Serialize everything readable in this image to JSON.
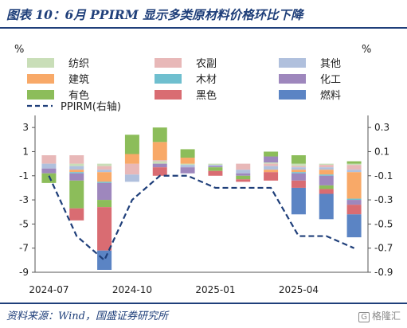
{
  "header": {
    "title": "图表 10：6月 PPIRM 显示多类原材料价格环比下降"
  },
  "footer": {
    "source": "资料来源：Wind，国盛证券研究所",
    "watermark": "格隆汇"
  },
  "chart_data": {
    "type": "bar",
    "stacked": true,
    "left_axis": {
      "unit": "%",
      "range": [
        -9,
        4
      ],
      "ticks": [
        3,
        1,
        -1,
        -3,
        -5,
        -7,
        -9
      ]
    },
    "right_axis": {
      "unit": "%",
      "range": [
        -0.9,
        0.4
      ],
      "ticks": [
        "0.3",
        "0.1",
        "-0.1",
        "-0.3",
        "-0.5",
        "-0.7",
        "-0.9"
      ]
    },
    "x_tick_labels": [
      {
        "label": "2024-07",
        "index": 0
      },
      {
        "label": "2024-10",
        "index": 3
      },
      {
        "label": "2025-01",
        "index": 6
      },
      {
        "label": "2025-04",
        "index": 9
      }
    ],
    "categories": [
      "2024-07",
      "2024-08",
      "2024-09",
      "2024-10",
      "2024-11",
      "2024-12",
      "2025-01",
      "2025-02",
      "2025-03",
      "2025-04",
      "2025-05",
      "2025-06"
    ],
    "legend_position": "top",
    "series": [
      {
        "name": "纺织",
        "color": "#c9deb8",
        "values": [
          0.0,
          -0.2,
          -0.2,
          0.0,
          0.2,
          -0.1,
          -0.1,
          0.0,
          0.1,
          -0.2,
          -0.1,
          -0.1
        ]
      },
      {
        "name": "农副",
        "color": "#e8b8b8",
        "values": [
          0.7,
          0.7,
          -0.3,
          -0.9,
          0.1,
          0.0,
          0.0,
          -0.5,
          -0.2,
          -0.1,
          -0.2,
          -0.4
        ]
      },
      {
        "name": "其他",
        "color": "#b0c0dd",
        "values": [
          -0.4,
          -0.3,
          -0.2,
          -0.6,
          0.0,
          -0.2,
          -0.1,
          -0.3,
          -0.3,
          -0.2,
          -0.2,
          -0.2
        ]
      },
      {
        "name": "建筑",
        "color": "#f8a968",
        "values": [
          0.0,
          -0.2,
          -0.8,
          0.8,
          1.5,
          0.5,
          0.0,
          0.0,
          -0.2,
          -0.2,
          -0.4,
          -2.2
        ]
      },
      {
        "name": "木材",
        "color": "#6fbfcf",
        "values": [
          0.0,
          -0.1,
          -0.1,
          0.0,
          0.0,
          0.0,
          0.0,
          0.0,
          0.0,
          -0.1,
          -0.1,
          -0.1
        ]
      },
      {
        "name": "化工",
        "color": "#9e87bd",
        "values": [
          -0.4,
          -0.6,
          -1.4,
          0.0,
          -0.3,
          -0.5,
          -0.1,
          -0.2,
          0.5,
          -0.6,
          -0.8,
          -0.4
        ]
      },
      {
        "name": "有色",
        "color": "#8cbd5a",
        "values": [
          -0.8,
          -2.3,
          -0.6,
          1.6,
          1.2,
          0.7,
          -0.3,
          -0.3,
          0.4,
          0.7,
          -0.3,
          0.2
        ]
      },
      {
        "name": "黑色",
        "color": "#d96c72",
        "values": [
          0.0,
          -1.0,
          -3.6,
          0.0,
          -0.7,
          0.0,
          -0.4,
          -0.2,
          -0.7,
          -0.6,
          -0.4,
          -0.8
        ]
      },
      {
        "name": "燃料",
        "color": "#5b84c4",
        "values": [
          0.0,
          0.0,
          -1.6,
          0.0,
          0.0,
          0.0,
          0.0,
          0.0,
          0.0,
          -2.2,
          -2.1,
          -1.9
        ]
      }
    ],
    "line": {
      "name": "PPIRM(右轴)",
      "color": "#1f3f7a",
      "axis": "right",
      "values": [
        -0.1,
        -0.6,
        -0.8,
        -0.3,
        -0.1,
        -0.1,
        -0.2,
        -0.2,
        -0.2,
        -0.6,
        -0.6,
        -0.7
      ]
    }
  }
}
